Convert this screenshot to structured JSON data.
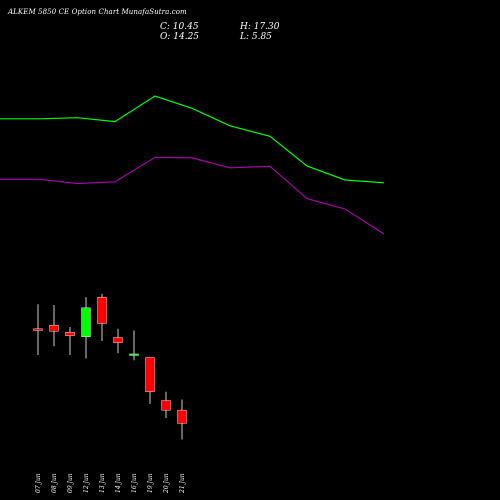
{
  "header": {
    "title": "ALKEM 5850  CE Option  Chart MunafaSutra.com",
    "close": "C: 10.45",
    "open": "O: 14.25",
    "high": "H: 17.30",
    "low": "L: 5.85"
  },
  "colors": {
    "background": "#000000",
    "upper_line": "#00ff00",
    "lower_line": "#aa00aa",
    "bullish": "#00ff00",
    "bearish": "#ff0000",
    "wick": "#ffffff",
    "text": "#ffffff"
  },
  "chart_data": {
    "type": "candlestick",
    "title": "ALKEM 5850  CE Option  Chart MunafaSutra.com",
    "categories": [
      "07 Jun",
      "08 Jun",
      "09 Jun",
      "12 Jun",
      "13 Jun",
      "14 Jun",
      "16 Jun",
      "19 Jun",
      "20 Jun",
      "21 Jun"
    ],
    "candles": [
      {
        "date": "07 Jun",
        "open": 37.5,
        "high": 44.5,
        "low": 30.0,
        "close": 37.0,
        "direction": "down"
      },
      {
        "date": "08 Jun",
        "open": 38.5,
        "high": 44.3,
        "low": 32.5,
        "close": 36.8,
        "direction": "down"
      },
      {
        "date": "09 Jun",
        "open": 36.5,
        "high": 38.0,
        "low": 30.0,
        "close": 35.5,
        "direction": "down"
      },
      {
        "date": "12 Jun",
        "open": 35.2,
        "high": 46.5,
        "low": 29.0,
        "close": 43.5,
        "direction": "up"
      },
      {
        "date": "13 Jun",
        "open": 46.5,
        "high": 47.5,
        "low": 34.0,
        "close": 39.0,
        "direction": "down"
      },
      {
        "date": "14 Jun",
        "open": 35.0,
        "high": 37.5,
        "low": 30.5,
        "close": 33.5,
        "direction": "down"
      },
      {
        "date": "16 Jun",
        "open": 30.0,
        "high": 37.0,
        "low": 28.5,
        "close": 30.3,
        "direction": "up"
      },
      {
        "date": "19 Jun",
        "open": 29.3,
        "high": 29.3,
        "low": 16.0,
        "close": 19.5,
        "direction": "down"
      },
      {
        "date": "20 Jun",
        "open": 17.0,
        "high": 19.5,
        "low": 12.0,
        "close": 14.2,
        "direction": "down"
      },
      {
        "date": "21 Jun",
        "open": 14.25,
        "high": 17.3,
        "low": 5.85,
        "close": 10.45,
        "direction": "down"
      }
    ],
    "indicator_lines": [
      {
        "color": "#00ff00",
        "values": [
          97.5,
          97.5,
          97.8,
          96.7,
          104.0,
          100.5,
          95.5,
          92.5,
          84.0,
          80.0,
          79.2
        ]
      },
      {
        "color": "#aa00aa",
        "values": [
          80.2,
          80.2,
          79.0,
          79.5,
          86.5,
          86.3,
          83.5,
          83.9,
          74.7,
          71.7,
          64.6
        ]
      }
    ],
    "ylim": [
      0,
      120
    ]
  }
}
